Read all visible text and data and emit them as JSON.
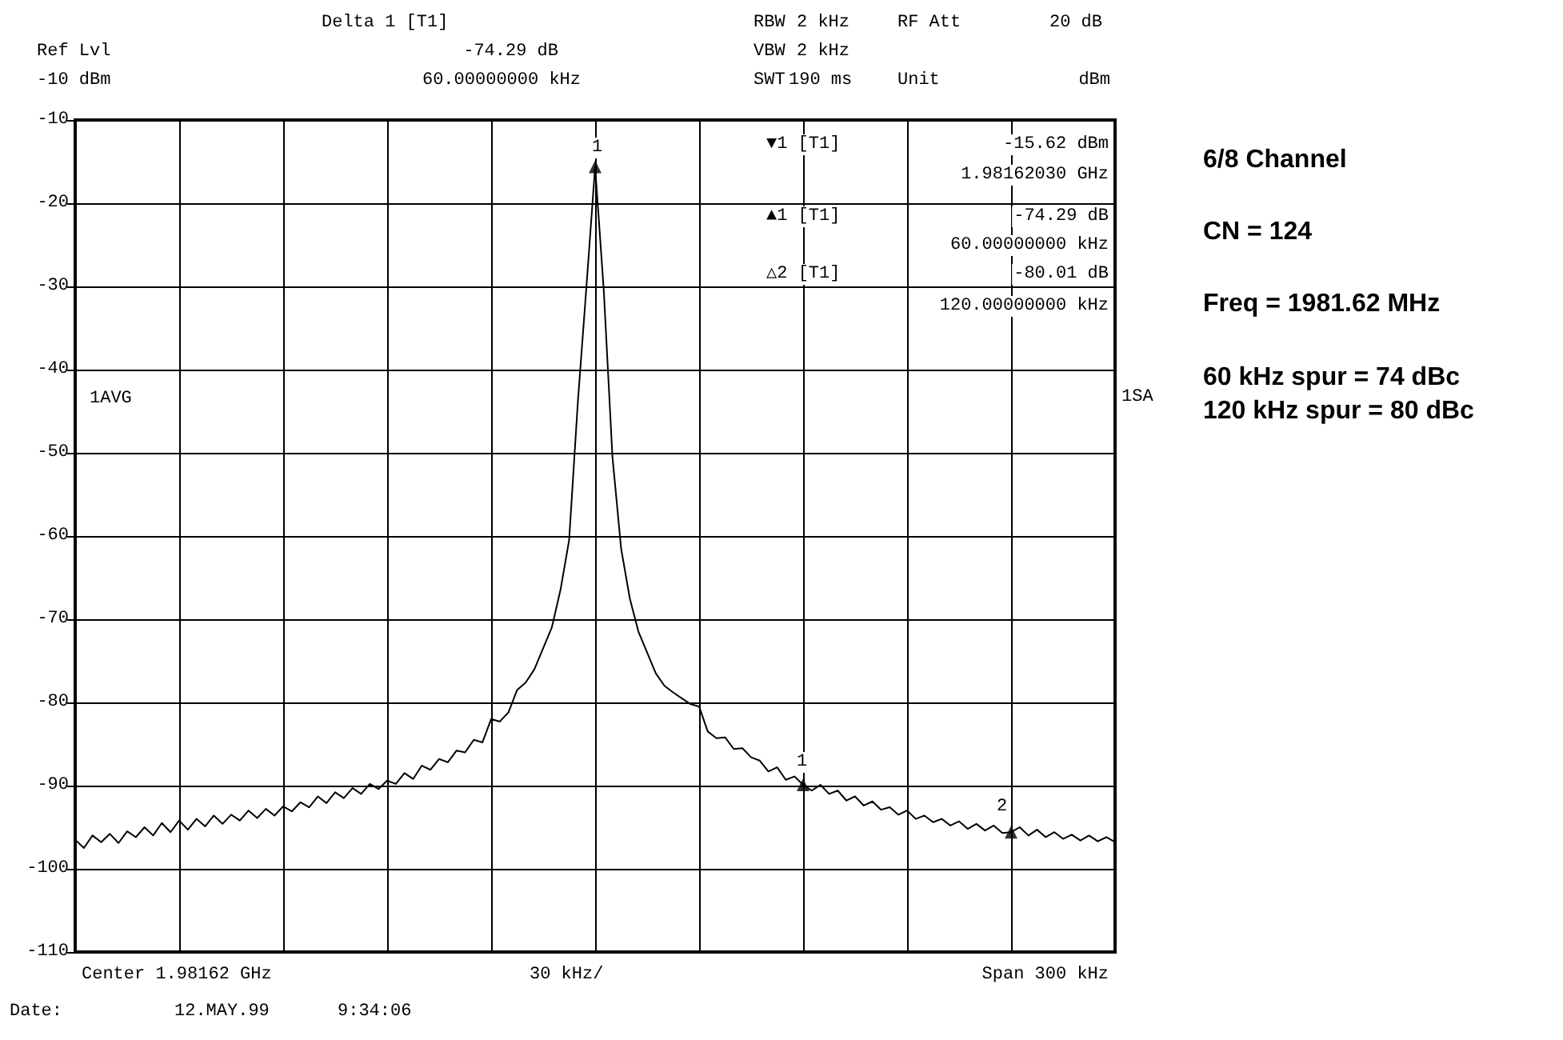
{
  "chart_data": {
    "type": "line",
    "categories": [
      null,
      null,
      null,
      null,
      null,
      null,
      null,
      null,
      null,
      null,
      null,
      null,
      null,
      null,
      null,
      null,
      null,
      null,
      null,
      null,
      null,
      null,
      null,
      null,
      null,
      null,
      null,
      null,
      null,
      null,
      null,
      null,
      null,
      null,
      null,
      null,
      null,
      null,
      null,
      null,
      null,
      null,
      null,
      null,
      null,
      null,
      null,
      null,
      null,
      null,
      null,
      null,
      null,
      null,
      null,
      null,
      null,
      null,
      null,
      null,
      null,
      null,
      null,
      null,
      null,
      null,
      null,
      null,
      null,
      null,
      null,
      null,
      null,
      null,
      null,
      null,
      null,
      null,
      null,
      null,
      null,
      null,
      null,
      null,
      null,
      null,
      null,
      null,
      null,
      null,
      null,
      null,
      null,
      null,
      null,
      null,
      null,
      null,
      null,
      null,
      null,
      null,
      null,
      null,
      null,
      null,
      null,
      null,
      null,
      null,
      null,
      null,
      null,
      null,
      null,
      null,
      null,
      null,
      null,
      null,
      null
    ],
    "series": [
      {
        "color": "#000000",
        "marker": "none",
        "values": [
          -96.5,
          -97.5,
          -96.0,
          -96.8,
          -95.8,
          -96.9,
          -95.5,
          -96.2,
          -95.0,
          -96.0,
          -94.5,
          -95.6,
          -94.2,
          -95.3,
          -94.0,
          -94.9,
          -93.6,
          -94.6,
          -93.5,
          -94.2,
          -93.0,
          -93.9,
          -92.8,
          -93.6,
          -92.5,
          -93.1,
          -92.0,
          -92.6,
          -91.3,
          -92.1,
          -90.8,
          -91.5,
          -90.3,
          -91.0,
          -89.8,
          -90.4,
          -89.4,
          -89.8,
          -88.5,
          -89.2,
          -87.6,
          -88.1,
          -86.8,
          -87.2,
          -85.8,
          -86.0,
          -84.5,
          -84.8,
          -82.0,
          -82.3,
          -81.2,
          -78.5,
          -77.6,
          -76.0,
          -73.5,
          -71.0,
          -66.5,
          -60.5,
          -44.0,
          -30.0,
          -15.62,
          -30.5,
          -50.5,
          -61.5,
          -67.5,
          -71.5,
          -74.0,
          -76.5,
          -78.0,
          -78.8,
          -79.5,
          -80.2,
          -80.5,
          -83.5,
          -84.3,
          -84.2,
          -85.6,
          -85.5,
          -86.6,
          -87.0,
          -88.3,
          -87.8,
          -89.3,
          -88.9,
          -89.9,
          -90.6,
          -89.9,
          -91.0,
          -90.6,
          -91.8,
          -91.3,
          -92.4,
          -91.9,
          -92.9,
          -92.6,
          -93.5,
          -93.0,
          -94.0,
          -93.6,
          -94.4,
          -94.0,
          -94.8,
          -94.3,
          -95.2,
          -94.6,
          -95.4,
          -94.8,
          -95.7,
          -95.6,
          -95.0,
          -96.0,
          -95.3,
          -96.2,
          -95.6,
          -96.4,
          -95.9,
          -96.6,
          -96.0,
          -96.7,
          -96.2,
          -96.8
        ]
      },
      {
        "type": "scatter",
        "color": "#000000",
        "marker": "triangle",
        "values": [
          null,
          null,
          null,
          null,
          null,
          null,
          null,
          null,
          null,
          null,
          null,
          null,
          null,
          null,
          null,
          null,
          null,
          null,
          null,
          null,
          null,
          null,
          null,
          null,
          null,
          null,
          null,
          null,
          null,
          null,
          null,
          null,
          null,
          null,
          null,
          null,
          null,
          null,
          null,
          null,
          null,
          null,
          null,
          null,
          null,
          null,
          null,
          null,
          null,
          null,
          null,
          null,
          null,
          null,
          null,
          null,
          null,
          null,
          null,
          null,
          -15.62,
          null,
          null,
          null,
          null,
          null,
          null,
          null,
          null,
          null,
          null,
          null,
          null,
          null,
          null,
          null,
          null,
          null,
          null,
          null,
          null,
          null,
          null,
          null,
          -89.9,
          null,
          null,
          null,
          null,
          null,
          null,
          null,
          null,
          null,
          null,
          null,
          null,
          null,
          null,
          null,
          null,
          null,
          null,
          null,
          null,
          null,
          null,
          null,
          -95.6,
          null,
          null,
          null,
          null,
          null,
          null,
          null,
          null,
          null,
          null,
          null,
          null
        ]
      }
    ],
    "ylim": [
      -110,
      -10
    ],
    "yticks": [
      -110,
      -100,
      -90,
      -80,
      -70,
      -60,
      -50,
      -40,
      -30,
      -20,
      -10
    ],
    "grid": true,
    "tick_labels": "y",
    "annotations": [
      "Ref Lvl",
      "-10 dBm",
      "Delta 1 [T1]",
      "-74.29 dB",
      "60.00000000 kHz",
      "RBW",
      "VBW",
      "SWT",
      "2 kHz",
      "2 kHz",
      "190 ms",
      "RF Att",
      "20 dB",
      "Unit",
      "dBm",
      "▼1 [T1]",
      "-15.62 dBm",
      "1.98162030 GHz",
      "▲1 [T1]",
      "-74.29 dB",
      "60.00000000 kHz",
      "△2 [T1]",
      "-80.01 dB",
      "120.00000000 kHz",
      "1AVG",
      "1SA",
      "Center 1.98162 GHz",
      "30 kHz/",
      "Span 300 kHz",
      "Date:",
      "12.MAY.99",
      "9:34:06",
      "6/8 Channel",
      "CN = 124",
      "Freq = 1981.62 MHz",
      "60 kHz spur = 74 dBc",
      "120 kHz spur = 80 dBc",
      "1",
      "1",
      "2"
    ]
  }
}
